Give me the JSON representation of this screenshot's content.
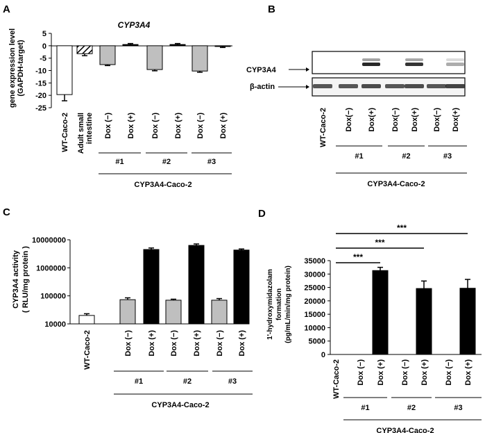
{
  "chart_data": [
    {
      "panel": "A",
      "type": "bar",
      "title": "CYP3A4",
      "ylabel": [
        "gene expression level",
        "(GAPDH-target)"
      ],
      "ylim": [
        -25,
        5
      ],
      "yticks": [
        5,
        0,
        -5,
        -10,
        -15,
        -20,
        -25
      ],
      "categories": [
        "WT-Caco-2",
        "Adult small intestine",
        "Dox (−)",
        "Dox (+)",
        "Dox (−)",
        "Dox (+)",
        "Dox (−)",
        "Dox (+)"
      ],
      "category_lines": [
        [
          "WT-Caco-2"
        ],
        [
          "Adult small",
          "intestine"
        ],
        [
          "Dox (−)"
        ],
        [
          "Dox (+)"
        ],
        [
          "Dox (−)"
        ],
        [
          "Dox (+)"
        ],
        [
          "Dox (−)"
        ],
        [
          "Dox (+)"
        ]
      ],
      "values": [
        -19.7,
        -3.2,
        -7.6,
        0.5,
        -9.6,
        0.5,
        -10.2,
        -0.3
      ],
      "errors": [
        2.5,
        0.8,
        0.4,
        0.4,
        0.5,
        0.4,
        0.5,
        0.4
      ],
      "styles": [
        "white",
        "hatch",
        "gray",
        "black",
        "gray",
        "black",
        "gray",
        "black"
      ],
      "groups": [
        "#1",
        "#2",
        "#3"
      ],
      "group_label": "CYP3A4-Caco-2"
    },
    {
      "panel": "B",
      "type": "western-blot",
      "bands": [
        "CYP3A4",
        "β-actin"
      ],
      "lanes": [
        "WT-Caco-2",
        "Dox(−)",
        "Dox(+)",
        "Dox(−)",
        "Dox(+)",
        "Dox(−)",
        "Dox(+)"
      ],
      "cyp3a4_intensity": [
        0,
        0,
        0.9,
        0,
        0.85,
        0,
        0.35
      ],
      "actin_intensity": [
        0.75,
        0.75,
        0.8,
        0.75,
        0.8,
        0.75,
        0.85
      ],
      "groups": [
        "#1",
        "#2",
        "#3"
      ],
      "group_label": "CYP3A4-Caco-2"
    },
    {
      "panel": "C",
      "type": "bar",
      "yscale": "log",
      "ylabel": [
        "CYP3A4 activity",
        "( RLU/mg protein )"
      ],
      "ylim": [
        10000,
        10000000
      ],
      "yticks": [
        10000000,
        1000000,
        100000,
        10000
      ],
      "yticklabels": [
        "10000000",
        "1000000",
        "100000",
        "10000"
      ],
      "categories": [
        "WT-Caco-2",
        "Dox (−)",
        "Dox (+)",
        "Dox (−)",
        "Dox (+)",
        "Dox (−)",
        "Dox (+)"
      ],
      "values": [
        20000,
        73000,
        4500000,
        70000,
        6300000,
        70000,
        4300000
      ],
      "errors": [
        3000,
        12000,
        600000,
        6000,
        800000,
        10000,
        400000
      ],
      "styles": [
        "white",
        "gray",
        "black",
        "gray",
        "black",
        "gray",
        "black"
      ],
      "groups": [
        "#1",
        "#2",
        "#3"
      ],
      "group_label": "CYP3A4-Caco-2"
    },
    {
      "panel": "D",
      "type": "bar",
      "ylabel": [
        "1'-hydroxymidazolam",
        "formation",
        "(pg/mL/min/mg protein)"
      ],
      "ylim": [
        0,
        35000
      ],
      "yticks": [
        35000,
        30000,
        25000,
        20000,
        15000,
        10000,
        5000,
        0
      ],
      "categories": [
        "WT-Caco-2",
        "Dox (−)",
        "Dox (+)",
        "Dox (−)",
        "Dox (+)",
        "Dox (−)",
        "Dox (+)"
      ],
      "values": [
        0,
        0,
        31300,
        0,
        24600,
        0,
        24700
      ],
      "errors": [
        0,
        0,
        1200,
        2800,
        0,
        0,
        3300
      ],
      "styles": [
        "white",
        "white",
        "black",
        "white",
        "black",
        "white",
        "black"
      ],
      "significance": [
        {
          "from": 0,
          "to": 2,
          "label": "***"
        },
        {
          "from": 0,
          "to": 4,
          "label": "***"
        },
        {
          "from": 0,
          "to": 6,
          "label": "***"
        }
      ],
      "groups": [
        "#1",
        "#2",
        "#3"
      ],
      "group_label": "CYP3A4-Caco-2"
    }
  ]
}
